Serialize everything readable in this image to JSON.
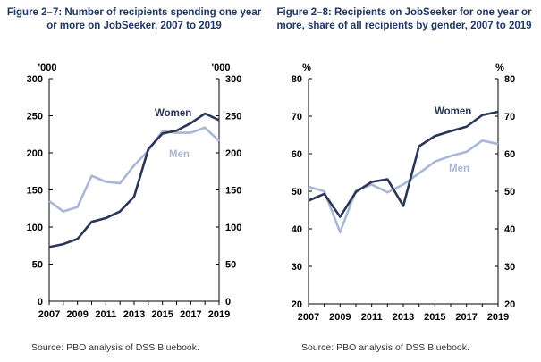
{
  "colors": {
    "women": "#2b3556",
    "men": "#a9b7d6",
    "title": "#1f3864",
    "axis": "#000000"
  },
  "chart_data": [
    {
      "type": "line",
      "title": "Figure 2–7: Number of recipients spending one year or more on JobSeeker, 2007 to 2019",
      "unit_label": "'000",
      "ylim": [
        0,
        300
      ],
      "yticks": [
        0,
        50,
        100,
        150,
        200,
        250,
        300
      ],
      "xlim": [
        2007,
        2019
      ],
      "xticks": [
        2007,
        2009,
        2011,
        2013,
        2015,
        2017,
        2019
      ],
      "grid": false,
      "x": [
        2007,
        2008,
        2009,
        2010,
        2011,
        2012,
        2013,
        2014,
        2015,
        2016,
        2017,
        2018,
        2019
      ],
      "series": [
        {
          "name": "Women",
          "values": [
            73,
            77,
            84,
            107,
            112,
            121,
            141,
            205,
            226,
            230,
            240,
            253,
            244
          ]
        },
        {
          "name": "Men",
          "values": [
            135,
            121,
            127,
            169,
            161,
            159,
            183,
            203,
            229,
            227,
            227,
            234,
            216
          ]
        }
      ],
      "source": "Source: PBO analysis of DSS Bluebook."
    },
    {
      "type": "line",
      "title": "Figure 2–8: Recipients on JobSeeker for one year or more, share of all recipients by gender, 2007 to 2019",
      "unit_label": "%",
      "ylim": [
        20,
        80
      ],
      "yticks": [
        20,
        30,
        40,
        50,
        60,
        70,
        80
      ],
      "xlim": [
        2007,
        2019
      ],
      "xticks": [
        2007,
        2009,
        2011,
        2013,
        2015,
        2017,
        2019
      ],
      "grid": false,
      "x": [
        2007,
        2008,
        2009,
        2010,
        2011,
        2012,
        2013,
        2014,
        2015,
        2016,
        2017,
        2018,
        2019
      ],
      "series": [
        {
          "name": "Women",
          "values": [
            47.5,
            49.3,
            43.2,
            49.8,
            52.5,
            53.2,
            46.1,
            62.0,
            64.7,
            66.0,
            67.2,
            70.3,
            71.2
          ]
        },
        {
          "name": "Men",
          "values": [
            51.2,
            50.0,
            39.1,
            50.2,
            51.8,
            49.7,
            51.8,
            54.8,
            57.9,
            59.4,
            60.5,
            63.5,
            62.6
          ]
        }
      ],
      "source": "Source: PBO analysis of DSS Bluebook."
    }
  ]
}
